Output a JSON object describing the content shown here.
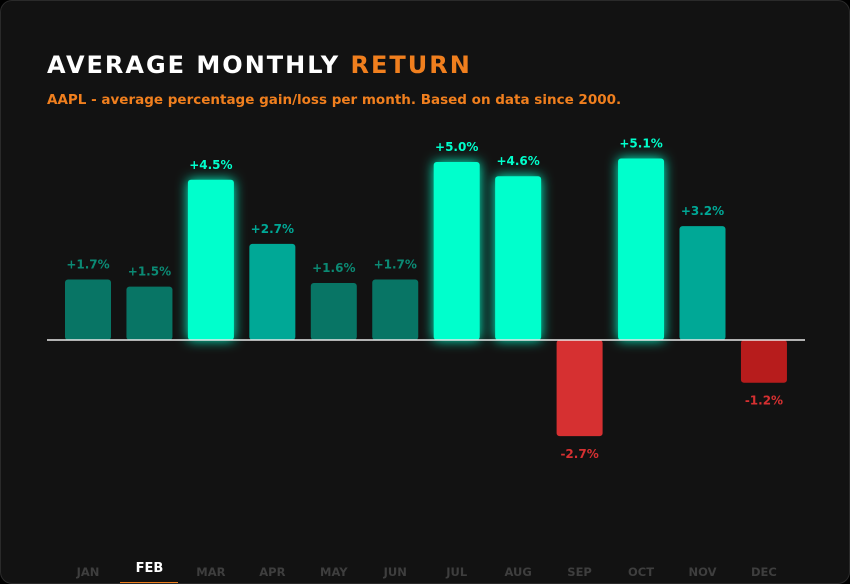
{
  "header": {
    "title_main": "AVERAGE MONTHLY",
    "title_accent": "RETURN",
    "subtitle": "AAPL - average percentage gain/loss per month. Based on data since 2000."
  },
  "colors": {
    "accent": "#f07f1e",
    "high": "#00ffcc",
    "mid": "#00a896",
    "low": "#087565",
    "negative": "#d63031",
    "negative_dark": "#b71c1c"
  },
  "tabs": {
    "active": "FEB",
    "items": [
      "JAN",
      "FEB",
      "MAR",
      "APR",
      "MAY",
      "JUN",
      "JUL",
      "AUG",
      "SEP",
      "OCT",
      "NOV",
      "DEC"
    ]
  },
  "chart_data": {
    "type": "bar",
    "title": "AVERAGE MONTHLY RETURN",
    "subtitle": "AAPL - average percentage gain/loss per month. Based on data since 2000.",
    "categories": [
      "JAN",
      "FEB",
      "MAR",
      "APR",
      "MAY",
      "JUN",
      "JUL",
      "AUG",
      "SEP",
      "OCT",
      "NOV",
      "DEC"
    ],
    "values": [
      1.7,
      1.5,
      4.5,
      2.7,
      1.6,
      1.7,
      5.0,
      4.6,
      -2.7,
      5.1,
      3.2,
      -1.2
    ],
    "labels": [
      "+1.7%",
      "+1.5%",
      "+4.5%",
      "+2.7%",
      "+1.6%",
      "+1.7%",
      "+5.0%",
      "+4.6%",
      "-2.7%",
      "+5.1%",
      "+3.2%",
      "-1.2%"
    ],
    "unit": "%",
    "grid": false
  }
}
